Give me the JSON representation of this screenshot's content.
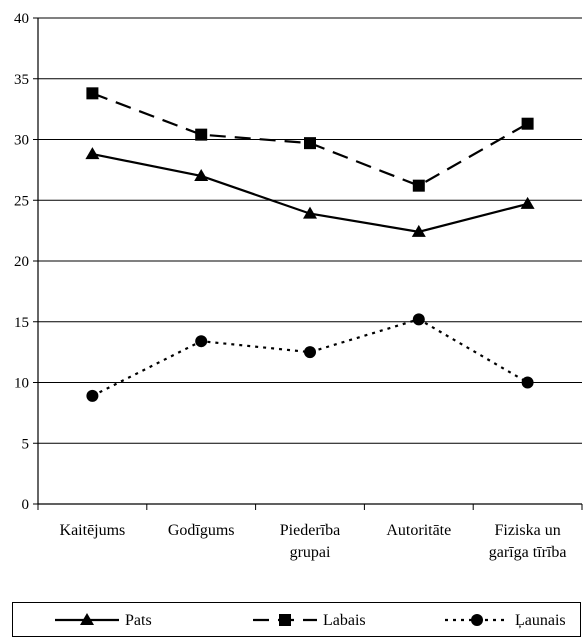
{
  "chart_data": {
    "type": "line",
    "categories": [
      [
        "Kaitējums"
      ],
      [
        "Godīgums"
      ],
      [
        "Piederība",
        "grupai"
      ],
      [
        "Autoritāte"
      ],
      [
        "Fiziska un",
        "garīga tīrība"
      ]
    ],
    "series": [
      {
        "name": "Pats",
        "values": [
          28.8,
          27.0,
          23.9,
          22.4,
          24.7
        ],
        "marker": "triangle",
        "dash": "solid"
      },
      {
        "name": "Labais",
        "values": [
          33.8,
          30.4,
          29.7,
          26.2,
          31.3
        ],
        "marker": "square",
        "dash": "long-dash"
      },
      {
        "name": "Ļaunais",
        "values": [
          8.9,
          13.4,
          12.5,
          15.2,
          10.0
        ],
        "marker": "circle",
        "dash": "dotted"
      }
    ],
    "ylim": [
      0,
      40
    ],
    "yticks": [
      0,
      5,
      10,
      15,
      20,
      25,
      30,
      35,
      40
    ],
    "grid": "horizontal",
    "legend_position": "bottom",
    "colors": {
      "line": "#000000",
      "grid": "#000000",
      "background": "#ffffff"
    }
  }
}
